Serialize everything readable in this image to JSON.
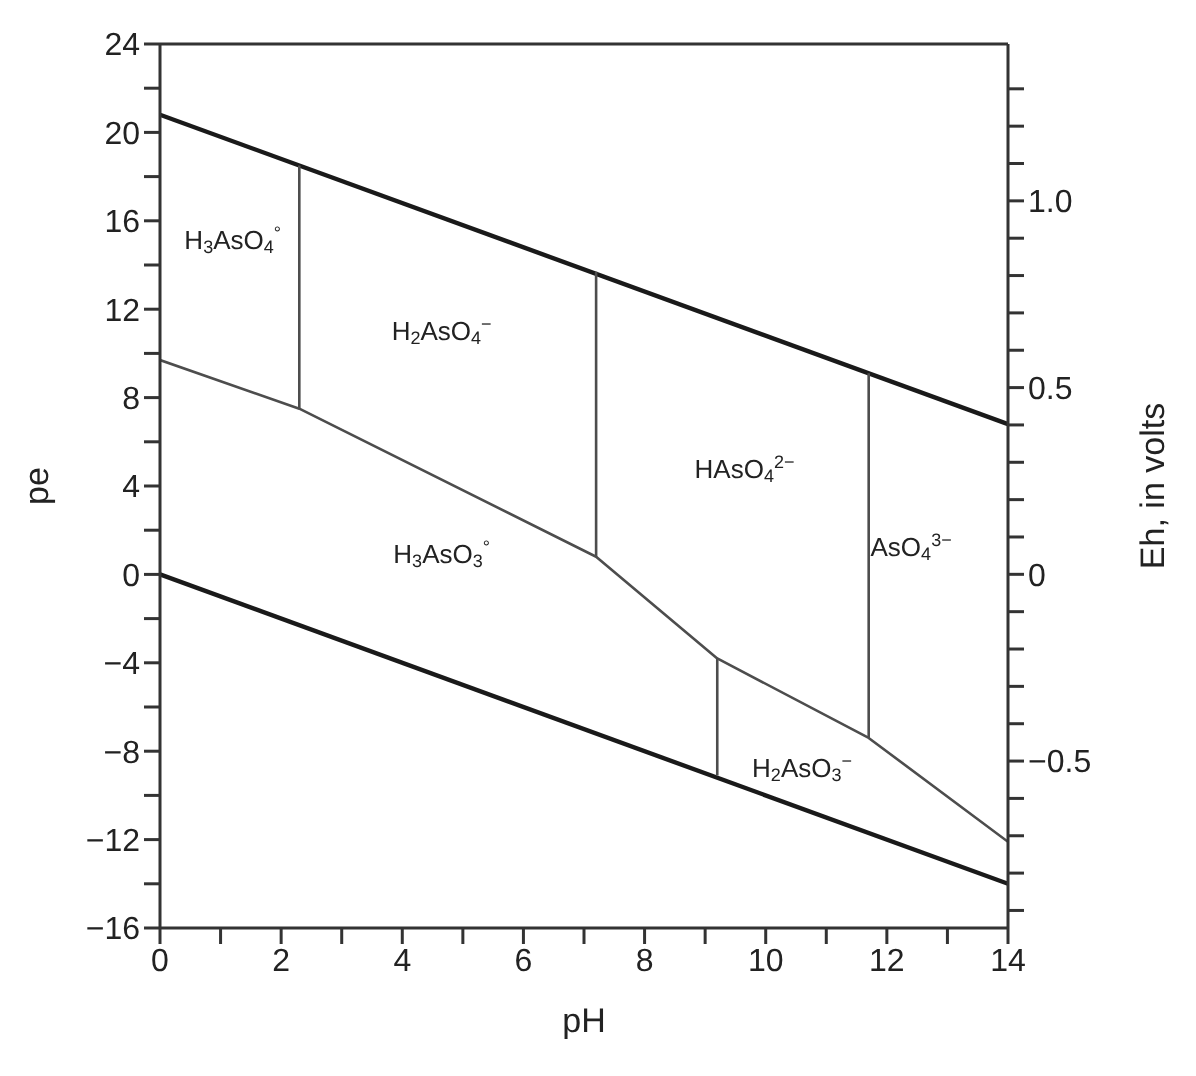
{
  "chart_data": {
    "type": "line",
    "xlabel": "pH",
    "ylabel": "pe",
    "y2label": "Eh, in volts",
    "xlim": [
      0,
      14
    ],
    "xticks": [
      0,
      {
        "value": 1,
        "label": null
      },
      2,
      {
        "value": 3,
        "label": null
      },
      4,
      {
        "value": 5,
        "label": null
      },
      6,
      {
        "value": 7,
        "label": null
      },
      8,
      {
        "value": 9,
        "label": null
      },
      10,
      {
        "value": 11,
        "label": null
      },
      12,
      {
        "value": 13,
        "label": null
      },
      14
    ],
    "ylim": [
      -16,
      24
    ],
    "yticks": [
      -16,
      {
        "value": -14,
        "label": null
      },
      -12,
      {
        "value": -10,
        "label": null
      },
      -8,
      {
        "value": -6,
        "label": null
      },
      -4,
      {
        "value": -2,
        "label": null
      },
      0,
      {
        "value": 2,
        "label": null
      },
      4,
      {
        "value": 6,
        "label": null
      },
      8,
      {
        "value": 10,
        "label": null
      },
      12,
      {
        "value": 14,
        "label": null
      },
      16,
      {
        "value": 18,
        "label": null
      },
      20,
      {
        "value": 22,
        "label": null
      },
      24
    ],
    "y2lim": [
      -0.947,
      1.42
    ],
    "y2ticks": [
      {
        "value": -0.9,
        "label": null
      },
      {
        "value": -0.8,
        "label": null
      },
      {
        "value": -0.7,
        "label": null
      },
      {
        "value": -0.6,
        "label": null
      },
      {
        "value": -0.5,
        "label": "−0.5"
      },
      {
        "value": -0.4,
        "label": null
      },
      {
        "value": -0.3,
        "label": null
      },
      {
        "value": -0.2,
        "label": null
      },
      {
        "value": -0.1,
        "label": null
      },
      0,
      {
        "value": 0.1,
        "label": null
      },
      {
        "value": 0.2,
        "label": null
      },
      {
        "value": 0.3,
        "label": null
      },
      {
        "value": 0.4,
        "label": null
      },
      0.5,
      {
        "value": 0.6,
        "label": null
      },
      {
        "value": 0.7,
        "label": null
      },
      {
        "value": 0.8,
        "label": null
      },
      {
        "value": 0.9,
        "label": null
      },
      {
        "value": 1,
        "label": "1.0"
      },
      {
        "value": 1.1,
        "label": null
      },
      {
        "value": 1.2,
        "label": null
      },
      {
        "value": 1.3,
        "label": null
      }
    ],
    "marker": "none",
    "line_style": "solid",
    "series": [
      {
        "color": "#1a1a1a",
        "x": [
          0,
          14
        ],
        "values": [
          20.8,
          6.8
        ]
      },
      {
        "color": "#1a1a1a",
        "x": [
          0,
          14
        ],
        "values": [
          0,
          -14
        ]
      },
      {
        "color": "#4d4d4d",
        "x": [
          0,
          2.3,
          7.2,
          9.2,
          11.7,
          14
        ],
        "values": [
          9.7,
          7.5,
          0.8,
          -3.8,
          -7.4,
          -12.1
        ]
      },
      {
        "color": "#4d4d4d",
        "x": [
          2.3,
          2.3
        ],
        "values": [
          18.5,
          7.5
        ]
      },
      {
        "color": "#4d4d4d",
        "x": [
          7.2,
          7.2
        ],
        "values": [
          13.7,
          0.8
        ]
      },
      {
        "color": "#4d4d4d",
        "x": [
          9.2,
          9.2
        ],
        "values": [
          -3.8,
          -9.1
        ]
      },
      {
        "color": "#4d4d4d",
        "x": [
          11.7,
          11.7
        ],
        "values": [
          9.1,
          -7.4
        ]
      }
    ],
    "annotations": [
      "H$_{3}$AsO$_{4}$$^{°}$",
      "H$_{2}$AsO$_{4}$$^{−}$",
      "HAsO$_{4}$$^{2−}$",
      "AsO$_{4}$$^{3−}$",
      "H$_{3}$AsO$_{3}$$^{°}$",
      "H$_{2}$AsO$_{3}$$^{−}$"
    ]
  }
}
